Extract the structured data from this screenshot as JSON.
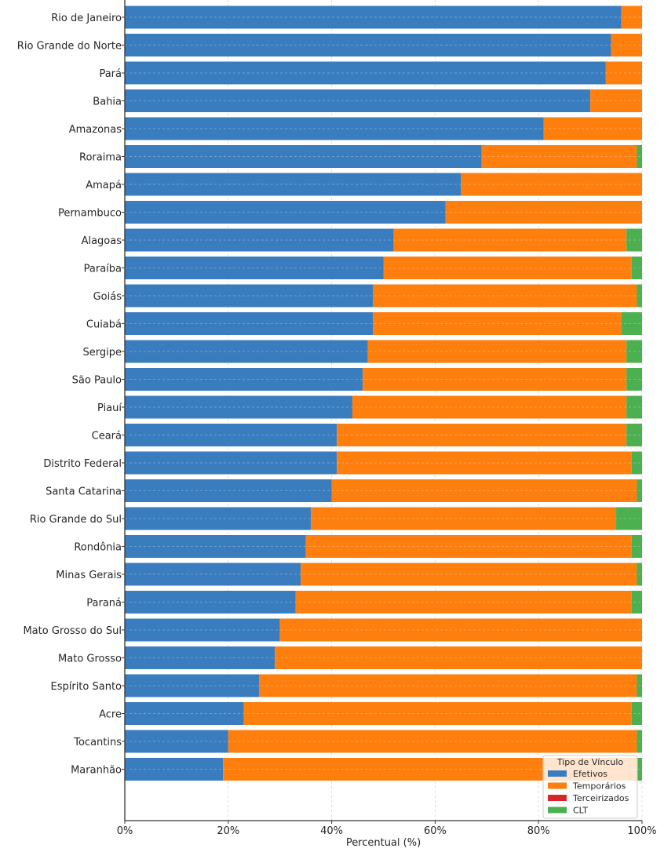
{
  "chart_data": {
    "type": "bar",
    "orientation": "horizontal",
    "stacked": true,
    "title": "",
    "xlabel": "Percentual (%)",
    "ylabel": "",
    "xlim": [
      0,
      100
    ],
    "x_ticks": [
      "0%",
      "20%",
      "40%",
      "60%",
      "80%",
      "100%"
    ],
    "x_tick_values": [
      0,
      20,
      40,
      60,
      80,
      100
    ],
    "grid": true,
    "legend": {
      "title": "Tipo de Vínculo",
      "position": "bottom-right",
      "entries": [
        "Efetivos",
        "Temporários",
        "Terceirizados",
        "CLT"
      ]
    },
    "categories": [
      "Rio de Janeiro",
      "Rio Grande do Norte",
      "Pará",
      "Bahia",
      "Amazonas",
      "Roraima",
      "Amapá",
      "Pernambuco",
      "Alagoas",
      "Paraíba",
      "Goiás",
      "Cuiabá",
      "Sergipe",
      "São Paulo",
      "Piauí",
      "Ceará",
      "Distrito Federal",
      "Santa Catarina",
      "Rio Grande do Sul",
      "Rondônia",
      "Minas Gerais",
      "Paraná",
      "Mato Grosso do Sul",
      "Mato Grosso",
      "Espírito Santo",
      "Acre",
      "Tocantins",
      "Maranhão"
    ],
    "series": [
      {
        "name": "Efetivos",
        "color": "#3a7dbf",
        "values": [
          96,
          94,
          93,
          90,
          81,
          69,
          65,
          62,
          52,
          50,
          48,
          48,
          47,
          46,
          44,
          41,
          41,
          40,
          36,
          35,
          34,
          33,
          30,
          29,
          26,
          23,
          20,
          19
        ]
      },
      {
        "name": "Temporários",
        "color": "#ff7f0e",
        "values": [
          4,
          6,
          7,
          10,
          19,
          30,
          35,
          38,
          45,
          48,
          51,
          48,
          50,
          51,
          53,
          56,
          57,
          59,
          59,
          63,
          65,
          65,
          70,
          71,
          73,
          75,
          79,
          80
        ]
      },
      {
        "name": "Terceirizados",
        "color": "#d62728",
        "values": [
          0,
          0,
          0,
          0,
          0,
          0,
          0,
          0,
          0,
          0,
          0,
          0,
          0,
          0,
          0,
          0,
          0,
          0,
          0,
          0,
          0,
          0,
          0,
          0,
          0,
          0,
          0,
          0
        ]
      },
      {
        "name": "CLT",
        "color": "#4caf50",
        "values": [
          0,
          0,
          0,
          0,
          0,
          1,
          0,
          0,
          3,
          2,
          1,
          4,
          3,
          3,
          3,
          3,
          2,
          1,
          5,
          2,
          1,
          2,
          0,
          0,
          1,
          2,
          1,
          1
        ]
      }
    ]
  }
}
